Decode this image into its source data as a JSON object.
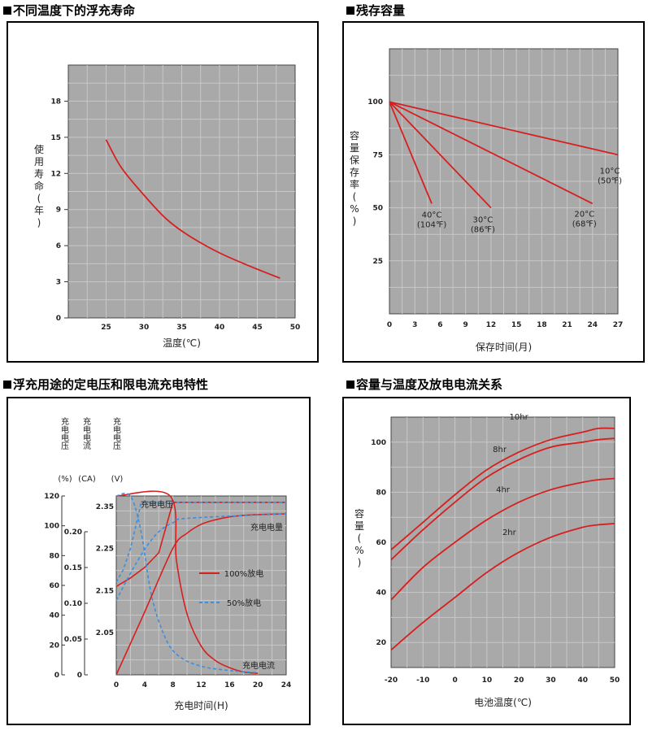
{
  "titles": {
    "float_life": "不同温度下的浮充寿命",
    "residual": "残存容量",
    "charging": "浮充用途的定电压和限电流充电特性",
    "capacity": "容量与温度及放电电流关系"
  },
  "colors": {
    "plot_bg": "#a9a9a9",
    "grid": "#c8c8c8",
    "red": "#d62020",
    "blue": "#3a8fe0",
    "frame": "#000000"
  },
  "chart_data": [
    {
      "id": "float_life",
      "type": "line",
      "title": "不同温度下的浮充寿命",
      "xlabel": "温度(℃)",
      "ylabel": "使用寿命(年)",
      "xlim": [
        20,
        50
      ],
      "ylim": [
        0,
        21
      ],
      "xticks": [
        "25",
        "30",
        "35",
        "40",
        "45",
        "50"
      ],
      "yticks": [
        "0",
        "3",
        "6",
        "9",
        "12",
        "15",
        "18"
      ],
      "series": [
        {
          "name": "life",
          "x": [
            25,
            27,
            30,
            33,
            36,
            40,
            44,
            48
          ],
          "y": [
            14.8,
            12.5,
            10.2,
            8.2,
            6.8,
            5.4,
            4.3,
            3.3
          ]
        }
      ]
    },
    {
      "id": "residual",
      "type": "line",
      "title": "残存容量",
      "xlabel": "保存时间(月)",
      "ylabel": "容量保存率(%)",
      "xlim": [
        0,
        27
      ],
      "ylim": [
        0,
        125
      ],
      "xticks": [
        "0",
        "3",
        "6",
        "9",
        "12",
        "15",
        "18",
        "21",
        "24",
        "27"
      ],
      "yticks": [
        "25",
        "50",
        "75",
        "100"
      ],
      "series": [
        {
          "name": "10°C",
          "x": [
            0,
            27
          ],
          "y": [
            100,
            75
          ]
        },
        {
          "name": "20°C",
          "x": [
            0,
            24
          ],
          "y": [
            100,
            52
          ]
        },
        {
          "name": "30°C",
          "x": [
            0,
            12
          ],
          "y": [
            100,
            50
          ]
        },
        {
          "name": "40°C",
          "x": [
            0,
            5
          ],
          "y": [
            100,
            52
          ]
        }
      ],
      "annotations": [
        {
          "series": "40°C",
          "temp": "40°C",
          "f": "(104℉)"
        },
        {
          "series": "30°C",
          "temp": "30°C",
          "f": "(86℉)"
        },
        {
          "series": "20°C",
          "temp": "20°C",
          "f": "(68℉)"
        },
        {
          "series": "10°C",
          "temp": "10°C",
          "f": "(50℉)"
        }
      ]
    },
    {
      "id": "charging",
      "type": "line",
      "title": "浮充用途的定电压和限电流充电特性",
      "xlabel": "充电时间(H)",
      "xlim": [
        0,
        24
      ],
      "xticks": [
        "0",
        "4",
        "8",
        "12",
        "16",
        "20",
        "24"
      ],
      "axis_headers": {
        "pct": "充电电压",
        "ca": "充电电流",
        "v": "充电电压"
      },
      "axis_units": {
        "pct": "(%)",
        "ca": "(CA)",
        "v": "(V)"
      },
      "y_pct": {
        "range": [
          0,
          120
        ],
        "ticks": [
          "0",
          "20",
          "40",
          "60",
          "80",
          "100",
          "120"
        ]
      },
      "y_ca": {
        "range": [
          0,
          0.2
        ],
        "ticks": [
          "0",
          "0.05",
          "0.10",
          "0.15",
          "0.20"
        ]
      },
      "y_v": {
        "range": [
          1.95,
          2.375
        ],
        "ticks": [
          "2.05",
          "2.15",
          "2.25",
          "2.35"
        ]
      },
      "curve_labels": {
        "voltage": "充电电压",
        "capacity": "充电电量",
        "current": "充电电流"
      },
      "legend": [
        {
          "name": "100%放电",
          "style": "solid"
        },
        {
          "name": "50%放电",
          "style": "dashed"
        }
      ],
      "series": [
        {
          "name": "voltage_100",
          "unit": "V",
          "x": [
            0,
            2,
            4,
            6,
            7,
            8,
            24
          ],
          "y": [
            2.16,
            2.18,
            2.205,
            2.24,
            2.3,
            2.36,
            2.36
          ]
        },
        {
          "name": "voltage_50",
          "unit": "V",
          "x": [
            0,
            1,
            2,
            3,
            3.5,
            24
          ],
          "y": [
            2.17,
            2.2,
            2.25,
            2.32,
            2.36,
            2.36
          ]
        },
        {
          "name": "current_100",
          "unit": "CA",
          "x": [
            0,
            7.6,
            8.5,
            10,
            12,
            14,
            16,
            18,
            20
          ],
          "y": [
            0.25,
            0.25,
            0.16,
            0.085,
            0.04,
            0.02,
            0.01,
            0.004,
            0.002
          ]
        },
        {
          "name": "current_50",
          "unit": "CA",
          "x": [
            0,
            2,
            3.5,
            5,
            7,
            9,
            12,
            16,
            20
          ],
          "y": [
            0.25,
            0.25,
            0.2,
            0.11,
            0.05,
            0.025,
            0.012,
            0.006,
            0.003
          ]
        },
        {
          "name": "capacity_100",
          "unit": "%",
          "x": [
            0,
            4,
            8,
            10,
            12,
            14,
            16,
            18,
            20,
            24
          ],
          "y": [
            0,
            42,
            85,
            95,
            101,
            104,
            106,
            107,
            107.5,
            108
          ]
        },
        {
          "name": "capacity_50",
          "unit": "%",
          "x": [
            0,
            2,
            4,
            6,
            8,
            10,
            24
          ],
          "y": [
            50,
            68,
            84,
            96,
            102,
            105,
            108
          ]
        }
      ]
    },
    {
      "id": "capacity",
      "type": "line",
      "title": "容量与温度及放电电流关系",
      "xlabel": "电池温度(℃)",
      "ylabel": "容量(%)",
      "xlim": [
        -20,
        50
      ],
      "ylim": [
        10,
        110
      ],
      "xticks": [
        "-20",
        "-10",
        "0",
        "10",
        "20",
        "30",
        "40",
        "50"
      ],
      "yticks": [
        "20",
        "40",
        "60",
        "80",
        "100"
      ],
      "series": [
        {
          "name": "10hr",
          "x": [
            -20,
            -10,
            0,
            10,
            20,
            30,
            40,
            45,
            50
          ],
          "y": [
            57,
            68,
            79,
            89,
            96,
            101,
            104,
            105.5,
            105.5
          ]
        },
        {
          "name": "8hr",
          "x": [
            -20,
            -10,
            0,
            10,
            20,
            30,
            40,
            45,
            50
          ],
          "y": [
            53,
            65,
            76,
            86,
            93,
            98,
            100,
            101,
            101.5
          ]
        },
        {
          "name": "4hr",
          "x": [
            -20,
            -10,
            0,
            10,
            20,
            30,
            40,
            45,
            50
          ],
          "y": [
            37,
            50,
            60,
            69,
            76,
            81,
            84,
            85,
            85.5
          ]
        },
        {
          "name": "2hr",
          "x": [
            -20,
            -10,
            0,
            10,
            20,
            30,
            40,
            45,
            50
          ],
          "y": [
            17,
            28,
            38,
            48,
            56,
            62,
            66,
            67,
            67.5
          ]
        }
      ]
    }
  ]
}
